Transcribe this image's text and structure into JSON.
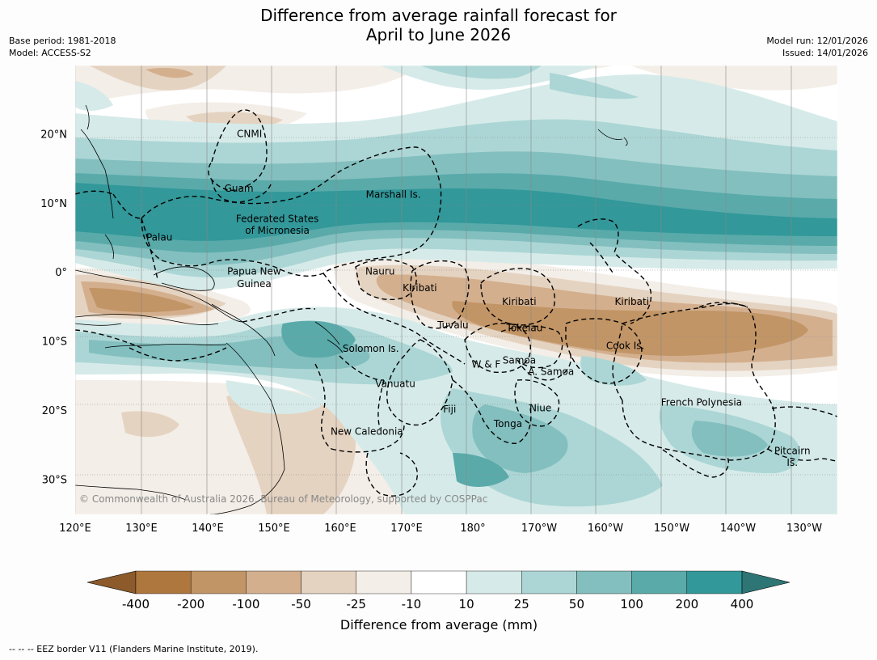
{
  "title": {
    "line1": "Difference from average rainfall forecast for",
    "line2": "April to June 2026"
  },
  "meta_left": {
    "base_period": "Base period: 1981-2018",
    "model": "Model: ACCESS-S2"
  },
  "meta_right": {
    "model_run": "Model run: 12/01/2026",
    "issued": "Issued: 14/01/2026"
  },
  "map": {
    "extent": {
      "lon_min": 120,
      "lon_max": 235,
      "lat_min": -35,
      "lat_max": 30
    },
    "lat_ticks": [
      {
        "value": 20,
        "label": "20°N"
      },
      {
        "value": 10,
        "label": "10°N"
      },
      {
        "value": 0,
        "label": "0°"
      },
      {
        "value": -10,
        "label": "10°S"
      },
      {
        "value": -20,
        "label": "20°S"
      },
      {
        "value": -30,
        "label": "30°S"
      }
    ],
    "lon_ticks": [
      {
        "value": 120,
        "label": "120°E"
      },
      {
        "value": 130,
        "label": "130°E"
      },
      {
        "value": 140,
        "label": "140°E"
      },
      {
        "value": 150,
        "label": "150°E"
      },
      {
        "value": 160,
        "label": "160°E"
      },
      {
        "value": 170,
        "label": "170°E"
      },
      {
        "value": 180,
        "label": "180°"
      },
      {
        "value": 190,
        "label": "170°W"
      },
      {
        "value": 200,
        "label": "160°W"
      },
      {
        "value": 210,
        "label": "150°W"
      },
      {
        "value": 220,
        "label": "140°W"
      },
      {
        "value": 230,
        "label": "130°W"
      }
    ],
    "places": [
      {
        "name": "CNMI",
        "lon": 146.3,
        "lat": 20.1
      },
      {
        "name": "Guam",
        "lon": 144.7,
        "lat": 12.2
      },
      {
        "name": "Marshall Is.",
        "lon": 168.0,
        "lat": 11.3
      },
      {
        "name": "Federated States",
        "lon": 150.5,
        "lat": 7.8
      },
      {
        "name": "of Micronesia",
        "lon": 150.5,
        "lat": 6.1
      },
      {
        "name": "Palau",
        "lon": 132.7,
        "lat": 5.1
      },
      {
        "name": "Papua New",
        "lon": 147.0,
        "lat": 0.2
      },
      {
        "name": "Guinea",
        "lon": 147.0,
        "lat": -1.6
      },
      {
        "name": "Nauru",
        "lon": 166.0,
        "lat": 0.2
      },
      {
        "name": "Kiribati",
        "lon": 172.0,
        "lat": -2.2
      },
      {
        "name": "Kiribati",
        "lon": 187.0,
        "lat": -4.2
      },
      {
        "name": "Kiribati",
        "lon": 204.0,
        "lat": -4.2
      },
      {
        "name": "Tuvalu",
        "lon": 177.0,
        "lat": -7.6
      },
      {
        "name": "Tokelau",
        "lon": 187.8,
        "lat": -8.0
      },
      {
        "name": "Cook Is.",
        "lon": 203.0,
        "lat": -10.6
      },
      {
        "name": "Solomon Is.",
        "lon": 164.6,
        "lat": -11.0
      },
      {
        "name": "W & F",
        "lon": 182.0,
        "lat": -13.3
      },
      {
        "name": "Samoa",
        "lon": 187.0,
        "lat": -12.7
      },
      {
        "name": "A. Samoa",
        "lon": 191.8,
        "lat": -14.3
      },
      {
        "name": "Vanuatu",
        "lon": 168.3,
        "lat": -16.1
      },
      {
        "name": "French Polynesia",
        "lon": 214.5,
        "lat": -18.8
      },
      {
        "name": "Fiji",
        "lon": 176.5,
        "lat": -19.8
      },
      {
        "name": "Niue",
        "lon": 190.2,
        "lat": -19.6
      },
      {
        "name": "Tonga",
        "lon": 185.3,
        "lat": -21.9
      },
      {
        "name": "New Caledonia",
        "lon": 164.0,
        "lat": -23.0
      },
      {
        "name": "Pitcairn",
        "lon": 228.2,
        "lat": -25.8
      },
      {
        "name": "Is.",
        "lon": 228.2,
        "lat": -27.5
      }
    ],
    "copyright": "© Commonwealth of Australia 2026, Bureau of Meteorology, supported by COSPPac"
  },
  "colorbar": {
    "labels": [
      "-400",
      "-200",
      "-100",
      "-50",
      "-25",
      "-10",
      "10",
      "25",
      "50",
      "100",
      "200",
      "400"
    ],
    "colors": [
      "#8c5a2b",
      "#ad773e",
      "#c29566",
      "#d3af8e",
      "#e5d3c1",
      "#f3eee7",
      "#ffffff",
      "#d6ebe9",
      "#acd6d5",
      "#83bfbf",
      "#5aaaaa",
      "#32989a",
      "#2e7575"
    ],
    "title": "Difference from average (mm)"
  },
  "palette": {
    "ocean_blank": "#ffffff",
    "land": "#fdfdfd",
    "brown_1": "#f3eee7",
    "brown_2": "#e5d3c1",
    "brown_3": "#d3af8e",
    "brown_4": "#c29566",
    "teal_1": "#d6ebe9",
    "teal_2": "#acd6d5",
    "teal_3": "#83bfbf",
    "teal_4": "#5aaaaa",
    "teal_5": "#32989a"
  },
  "footer": "-- -- -- EEZ border V11 (Flanders Marine Institute, 2019)."
}
